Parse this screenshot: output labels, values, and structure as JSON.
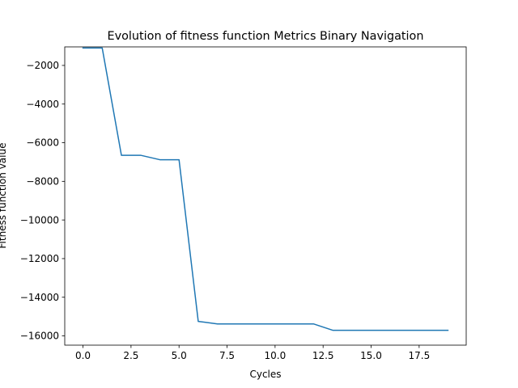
{
  "chart_data": {
    "type": "line",
    "title": "Evolution of fitness function Metrics Binary Navigation",
    "xlabel": "Cycles",
    "ylabel": "Fitness function value",
    "xlim": [
      -0.95,
      19.95
    ],
    "ylim": [
      -16480,
      -1040
    ],
    "x_ticks": [
      0,
      2.5,
      5,
      7.5,
      10,
      12.5,
      15,
      17.5
    ],
    "x_tick_labels": [
      "0.0",
      "2.5",
      "5.0",
      "7.5",
      "10.0",
      "12.5",
      "15.0",
      "17.5"
    ],
    "y_ticks": [
      -16000,
      -14000,
      -12000,
      -10000,
      -8000,
      -6000,
      -4000,
      -2000
    ],
    "y_tick_labels": [
      "−16000",
      "−14000",
      "−12000",
      "−10000",
      "−8000",
      "−6000",
      "−4000",
      "−2000"
    ],
    "grid": false,
    "series": [
      {
        "color": "#1f77b4",
        "x": [
          0,
          1,
          2,
          3,
          4,
          5,
          6,
          7,
          8,
          9,
          10,
          11,
          12,
          13,
          14,
          15,
          16,
          17,
          18,
          19
        ],
        "values": [
          -1100,
          -1100,
          -6650,
          -6650,
          -6880,
          -6880,
          -15250,
          -15380,
          -15380,
          -15380,
          -15380,
          -15380,
          -15380,
          -15710,
          -15710,
          -15710,
          -15710,
          -15710,
          -15710,
          -15710
        ]
      }
    ]
  }
}
